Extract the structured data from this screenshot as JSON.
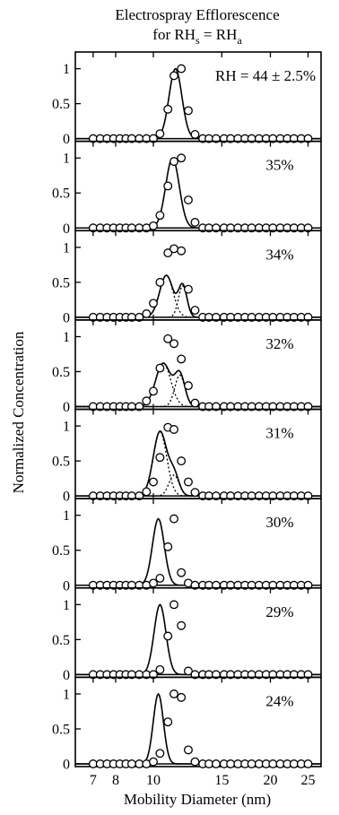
{
  "chart_data": {
    "type": "scatter",
    "title_line1": "Electrospray Efflorescence",
    "title_line2_prefix": "for RH",
    "title_line2_sub1": "s",
    "title_line2_mid": " = RH",
    "title_line2_sub2": "a",
    "xlabel": "Mobility Diameter (nm)",
    "ylabel": "Normalized Concentration",
    "xscale": "log",
    "xlim": [
      6.3,
      27
    ],
    "ylim": [
      0,
      1.2
    ],
    "x_ticks": [
      7,
      8,
      10,
      15,
      20,
      25
    ],
    "x_tick_labels": [
      "7",
      "8",
      "10",
      "15",
      "20",
      "25"
    ],
    "y_ticks": [
      0,
      0.5,
      1
    ],
    "y_tick_labels": [
      "0",
      "0.5",
      "1"
    ],
    "x_points": [
      7.0,
      7.3,
      7.6,
      7.9,
      8.2,
      8.5,
      8.8,
      9.2,
      9.6,
      10.0,
      10.4,
      10.9,
      11.3,
      11.8,
      12.3,
      12.8,
      13.4,
      13.9,
      14.5,
      15.2,
      15.8,
      16.5,
      17.2,
      17.9,
      18.7,
      19.5,
      20.3,
      21.2,
      22.1,
      23.0,
      24.0,
      25.0
    ],
    "panels": [
      {
        "label": "RH = 44 ± 2.5%",
        "fit": {
          "mu": 11.4,
          "sigma": 0.038,
          "amp": 1.0
        },
        "components": [],
        "values": [
          0,
          0,
          0,
          0,
          0,
          0,
          0,
          0,
          0,
          0,
          0.07,
          0.42,
          0.9,
          1.0,
          0.4,
          0.06,
          0,
          0,
          0,
          0,
          0,
          0,
          0,
          0,
          0,
          0,
          0,
          0,
          0,
          0,
          0,
          0
        ]
      },
      {
        "label": "35%",
        "fit": {
          "mu": 11.2,
          "sigma": 0.04,
          "amp": 1.0
        },
        "components": [],
        "values": [
          0,
          0,
          0,
          0,
          0,
          0,
          0,
          0,
          0,
          0.03,
          0.18,
          0.6,
          0.95,
          1.0,
          0.4,
          0.08,
          0,
          0,
          0,
          0,
          0,
          0,
          0,
          0,
          0,
          0,
          0,
          0,
          0,
          0,
          0,
          0
        ]
      },
      {
        "label": "34%",
        "fit": null,
        "components": [
          {
            "mu": 10.8,
            "sigma": 0.04,
            "amp": 0.6
          },
          {
            "mu": 11.9,
            "sigma": 0.025,
            "amp": 0.45
          }
        ],
        "values": [
          0,
          0,
          0,
          0,
          0,
          0,
          0,
          0,
          0.05,
          0.2,
          0.5,
          0.92,
          0.98,
          0.95,
          0.4,
          0.1,
          0,
          0,
          0,
          0,
          0,
          0,
          0,
          0,
          0,
          0,
          0,
          0,
          0,
          0,
          0,
          0
        ]
      },
      {
        "label": "32%",
        "fit": null,
        "components": [
          {
            "mu": 10.6,
            "sigma": 0.045,
            "amp": 0.62
          },
          {
            "mu": 11.7,
            "sigma": 0.03,
            "amp": 0.45
          }
        ],
        "values": [
          0,
          0,
          0,
          0,
          0,
          0,
          0,
          0,
          0.08,
          0.22,
          0.55,
          0.97,
          0.9,
          0.68,
          0.3,
          0.05,
          0,
          0,
          0,
          0,
          0,
          0,
          0,
          0,
          0,
          0,
          0,
          0,
          0,
          0,
          0,
          0
        ]
      },
      {
        "label": "31%",
        "fit": null,
        "components": [
          {
            "mu": 10.4,
            "sigma": 0.04,
            "amp": 0.92
          },
          {
            "mu": 11.3,
            "sigma": 0.03,
            "amp": 0.3
          }
        ],
        "values": [
          0,
          0,
          0,
          0,
          0,
          0,
          0,
          0,
          0.06,
          0.2,
          0.55,
          0.98,
          0.95,
          0.5,
          0.2,
          0.05,
          0,
          0,
          0,
          0,
          0,
          0,
          0,
          0,
          0,
          0,
          0,
          0,
          0,
          0,
          0,
          0
        ]
      },
      {
        "label": "30%",
        "fit": {
          "mu": 10.3,
          "sigma": 0.035,
          "amp": 0.95
        },
        "components": [],
        "values": [
          0,
          0,
          0,
          0,
          0,
          0,
          0,
          0,
          0,
          0.03,
          0.1,
          0.55,
          0.95,
          0.18,
          0.03,
          0,
          0,
          0,
          0,
          0,
          0,
          0,
          0,
          0,
          0,
          0,
          0,
          0,
          0,
          0,
          0,
          0
        ]
      },
      {
        "label": "29%",
        "fit": {
          "mu": 10.4,
          "sigma": 0.035,
          "amp": 1.0
        },
        "components": [],
        "values": [
          0,
          0,
          0,
          0,
          0,
          0,
          0,
          0,
          0,
          0,
          0.07,
          0.55,
          1.0,
          0.7,
          0.05,
          0,
          0,
          0,
          0,
          0,
          0,
          0,
          0,
          0,
          0,
          0,
          0,
          0,
          0,
          0,
          0,
          0
        ]
      },
      {
        "label": "24%",
        "fit": {
          "mu": 10.3,
          "sigma": 0.03,
          "amp": 1.0
        },
        "components": [],
        "values": [
          0,
          0,
          0,
          0,
          0,
          0,
          0,
          0,
          0,
          0.03,
          0.15,
          0.6,
          1.0,
          0.95,
          0.2,
          0.03,
          0,
          0,
          0,
          0,
          0,
          0,
          0,
          0,
          0,
          0,
          0,
          0,
          0,
          0,
          0,
          0
        ]
      }
    ]
  }
}
